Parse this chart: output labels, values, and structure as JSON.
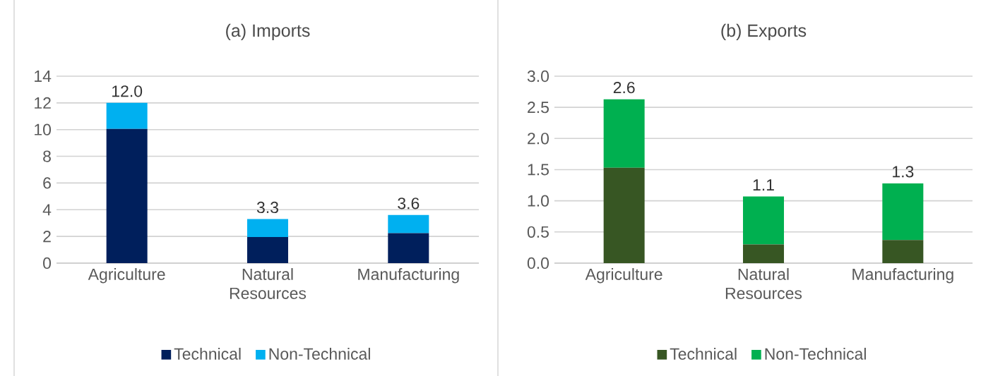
{
  "chart_data": [
    {
      "type": "bar",
      "stacked": true,
      "title": "(a) Imports",
      "categories": [
        "Agriculture",
        "Natural Resources",
        "Manufacturing"
      ],
      "series": [
        {
          "name": "Technical",
          "color": "#001f5c",
          "values": [
            10.05,
            1.95,
            2.25
          ]
        },
        {
          "name": "Non-Technical",
          "color": "#00b0f0",
          "values": [
            1.95,
            1.35,
            1.35
          ]
        }
      ],
      "totals": [
        "12.0",
        "3.3",
        "3.6"
      ],
      "ylim": [
        0,
        14
      ],
      "yticks": [
        0,
        2,
        4,
        6,
        8,
        10,
        12,
        14
      ],
      "grid": "y",
      "legend": "bottom"
    },
    {
      "type": "bar",
      "stacked": true,
      "title": "(b) Exports",
      "categories": [
        "Agriculture",
        "Natural Resources",
        "Manufacturing"
      ],
      "series": [
        {
          "name": "Technical",
          "color": "#375623",
          "values": [
            1.53,
            0.3,
            0.37
          ]
        },
        {
          "name": "Non-Technical",
          "color": "#00b050",
          "values": [
            1.1,
            0.77,
            0.91
          ]
        }
      ],
      "totals": [
        "2.6",
        "1.1",
        "1.3"
      ],
      "ylim": [
        0,
        3.0
      ],
      "yticks": [
        {
          "value": 0,
          "label": "0.0"
        },
        {
          "value": 0.5,
          "label": "0.5"
        },
        {
          "value": 1,
          "label": "1.0"
        },
        {
          "value": 1.5,
          "label": "1.5"
        },
        {
          "value": 2,
          "label": "2.0"
        },
        {
          "value": 2.5,
          "label": "2.5"
        },
        {
          "value": 3,
          "label": "3.0"
        }
      ],
      "grid": "y",
      "legend": "bottom"
    }
  ]
}
